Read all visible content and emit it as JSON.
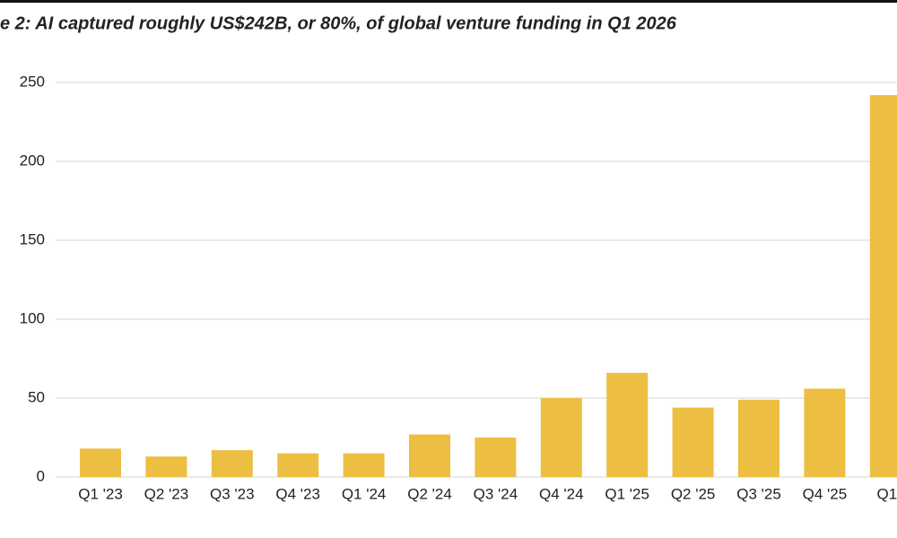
{
  "chart_data": {
    "type": "bar",
    "title": "e 2: AI captured roughly US$242B, or 80%, of global venture funding in Q1 2026",
    "categories": [
      "Q1 '23",
      "Q2 '23",
      "Q3 '23",
      "Q4 '23",
      "Q1 '24",
      "Q2 '24",
      "Q3 '24",
      "Q4 '24",
      "Q1 '25",
      "Q2 '25",
      "Q3 '25",
      "Q4 '25",
      "Q1 '"
    ],
    "values": [
      18,
      13,
      17,
      15,
      15,
      27,
      25,
      50,
      66,
      44,
      49,
      56,
      242
    ],
    "color": "#ecbf42",
    "ylim": [
      0,
      250
    ],
    "yticks": [
      0,
      50,
      100,
      150,
      200,
      250
    ],
    "grid": true
  }
}
